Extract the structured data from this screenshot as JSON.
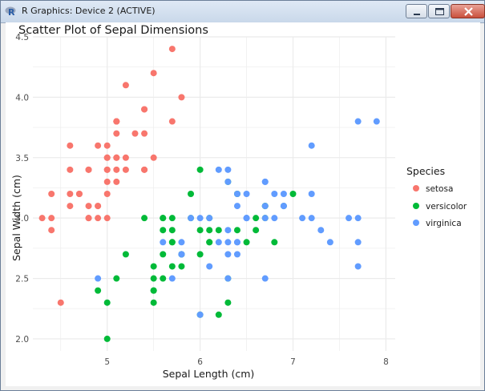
{
  "window": {
    "title": "R Graphics: Device 2 (ACTIVE)",
    "icon": "r-logo-icon",
    "controls": [
      "minimize-icon",
      "maximize-icon",
      "close-icon"
    ]
  },
  "colors": {
    "setosa": "#F8766D",
    "versicolor": "#00BA38",
    "virginica": "#619CFF",
    "grid": "#ebebeb"
  },
  "chart_data": {
    "type": "scatter",
    "title": "Scatter Plot of Sepal Dimensions",
    "xlabel": "Sepal Length (cm)",
    "ylabel": "Sepal Width (cm)",
    "xlim": [
      4.2,
      8.1
    ],
    "ylim": [
      1.9,
      4.5
    ],
    "xticks": [
      5,
      6,
      7,
      8
    ],
    "xtick_labels": [
      "5",
      "6",
      "7",
      "8"
    ],
    "yticks": [
      2.0,
      2.5,
      3.0,
      3.5,
      4.0,
      4.5
    ],
    "ytick_labels": [
      "2.0",
      "2.5",
      "3.0",
      "3.5",
      "4.0",
      "4.5"
    ],
    "grid": true,
    "legend": {
      "title": "Species",
      "position": "right",
      "entries": [
        "setosa",
        "versicolor",
        "virginica"
      ]
    },
    "series": [
      {
        "name": "setosa",
        "points": [
          [
            5.1,
            3.5
          ],
          [
            4.9,
            3.0
          ],
          [
            4.7,
            3.2
          ],
          [
            4.6,
            3.1
          ],
          [
            5.0,
            3.6
          ],
          [
            5.4,
            3.9
          ],
          [
            4.6,
            3.4
          ],
          [
            5.0,
            3.4
          ],
          [
            4.4,
            2.9
          ],
          [
            4.9,
            3.1
          ],
          [
            5.4,
            3.7
          ],
          [
            4.8,
            3.4
          ],
          [
            4.8,
            3.0
          ],
          [
            4.3,
            3.0
          ],
          [
            5.8,
            4.0
          ],
          [
            5.7,
            4.4
          ],
          [
            5.4,
            3.9
          ],
          [
            5.1,
            3.5
          ],
          [
            5.7,
            3.8
          ],
          [
            5.1,
            3.8
          ],
          [
            5.4,
            3.4
          ],
          [
            5.1,
            3.7
          ],
          [
            4.6,
            3.6
          ],
          [
            5.1,
            3.3
          ],
          [
            4.8,
            3.4
          ],
          [
            5.0,
            3.0
          ],
          [
            5.0,
            3.4
          ],
          [
            5.2,
            3.5
          ],
          [
            5.2,
            3.4
          ],
          [
            4.7,
            3.2
          ],
          [
            4.8,
            3.1
          ],
          [
            5.4,
            3.4
          ],
          [
            5.2,
            4.1
          ],
          [
            5.5,
            4.2
          ],
          [
            4.9,
            3.1
          ],
          [
            5.0,
            3.2
          ],
          [
            5.5,
            3.5
          ],
          [
            4.9,
            3.6
          ],
          [
            4.4,
            3.0
          ],
          [
            5.1,
            3.4
          ],
          [
            5.0,
            3.5
          ],
          [
            4.5,
            2.3
          ],
          [
            4.4,
            3.2
          ],
          [
            5.0,
            3.5
          ],
          [
            5.1,
            3.8
          ],
          [
            4.8,
            3.0
          ],
          [
            5.1,
            3.8
          ],
          [
            4.6,
            3.2
          ],
          [
            5.3,
            3.7
          ],
          [
            5.0,
            3.3
          ]
        ]
      },
      {
        "name": "versicolor",
        "points": [
          [
            7.0,
            3.2
          ],
          [
            6.4,
            3.2
          ],
          [
            6.9,
            3.1
          ],
          [
            5.5,
            2.3
          ],
          [
            6.5,
            2.8
          ],
          [
            5.7,
            2.8
          ],
          [
            6.3,
            3.3
          ],
          [
            4.9,
            2.4
          ],
          [
            6.6,
            2.9
          ],
          [
            5.2,
            2.7
          ],
          [
            5.0,
            2.0
          ],
          [
            5.9,
            3.0
          ],
          [
            6.0,
            2.2
          ],
          [
            6.1,
            2.9
          ],
          [
            5.6,
            2.9
          ],
          [
            6.7,
            3.1
          ],
          [
            5.6,
            3.0
          ],
          [
            5.8,
            2.7
          ],
          [
            6.2,
            2.2
          ],
          [
            5.6,
            2.5
          ],
          [
            5.9,
            3.2
          ],
          [
            6.1,
            2.8
          ],
          [
            6.3,
            2.5
          ],
          [
            6.1,
            2.8
          ],
          [
            6.4,
            2.9
          ],
          [
            6.6,
            3.0
          ],
          [
            6.8,
            2.8
          ],
          [
            6.7,
            3.0
          ],
          [
            6.0,
            2.9
          ],
          [
            5.7,
            2.6
          ],
          [
            5.5,
            2.4
          ],
          [
            5.5,
            2.4
          ],
          [
            5.8,
            2.7
          ],
          [
            6.0,
            2.7
          ],
          [
            5.4,
            3.0
          ],
          [
            6.0,
            3.4
          ],
          [
            6.7,
            3.1
          ],
          [
            6.3,
            2.3
          ],
          [
            5.6,
            3.0
          ],
          [
            5.5,
            2.5
          ],
          [
            5.5,
            2.6
          ],
          [
            6.1,
            3.0
          ],
          [
            5.8,
            2.6
          ],
          [
            5.0,
            2.3
          ],
          [
            5.6,
            2.7
          ],
          [
            5.7,
            3.0
          ],
          [
            5.7,
            2.9
          ],
          [
            6.2,
            2.9
          ],
          [
            5.1,
            2.5
          ],
          [
            5.7,
            2.8
          ]
        ]
      },
      {
        "name": "virginica",
        "points": [
          [
            6.3,
            3.3
          ],
          [
            5.8,
            2.7
          ],
          [
            7.1,
            3.0
          ],
          [
            6.3,
            2.9
          ],
          [
            6.5,
            3.0
          ],
          [
            7.6,
            3.0
          ],
          [
            4.9,
            2.5
          ],
          [
            7.3,
            2.9
          ],
          [
            6.7,
            2.5
          ],
          [
            7.2,
            3.6
          ],
          [
            6.5,
            3.2
          ],
          [
            6.4,
            2.7
          ],
          [
            6.8,
            3.0
          ],
          [
            5.7,
            2.5
          ],
          [
            5.8,
            2.8
          ],
          [
            6.4,
            3.2
          ],
          [
            6.5,
            3.0
          ],
          [
            7.7,
            3.8
          ],
          [
            7.7,
            2.6
          ],
          [
            6.0,
            2.2
          ],
          [
            6.9,
            3.2
          ],
          [
            5.6,
            2.8
          ],
          [
            7.7,
            2.8
          ],
          [
            6.3,
            2.7
          ],
          [
            6.7,
            3.3
          ],
          [
            7.2,
            3.2
          ],
          [
            6.2,
            2.8
          ],
          [
            6.1,
            3.0
          ],
          [
            6.4,
            2.8
          ],
          [
            7.2,
            3.0
          ],
          [
            7.4,
            2.8
          ],
          [
            7.9,
            3.8
          ],
          [
            6.4,
            2.8
          ],
          [
            6.3,
            2.8
          ],
          [
            6.1,
            2.6
          ],
          [
            7.7,
            3.0
          ],
          [
            6.3,
            3.4
          ],
          [
            6.4,
            3.1
          ],
          [
            6.0,
            3.0
          ],
          [
            6.9,
            3.1
          ],
          [
            6.7,
            3.1
          ],
          [
            6.9,
            3.1
          ],
          [
            5.8,
            2.7
          ],
          [
            6.8,
            3.2
          ],
          [
            6.7,
            3.3
          ],
          [
            6.7,
            3.0
          ],
          [
            6.3,
            2.5
          ],
          [
            6.5,
            3.0
          ],
          [
            6.2,
            3.4
          ],
          [
            5.9,
            3.0
          ]
        ]
      }
    ]
  }
}
